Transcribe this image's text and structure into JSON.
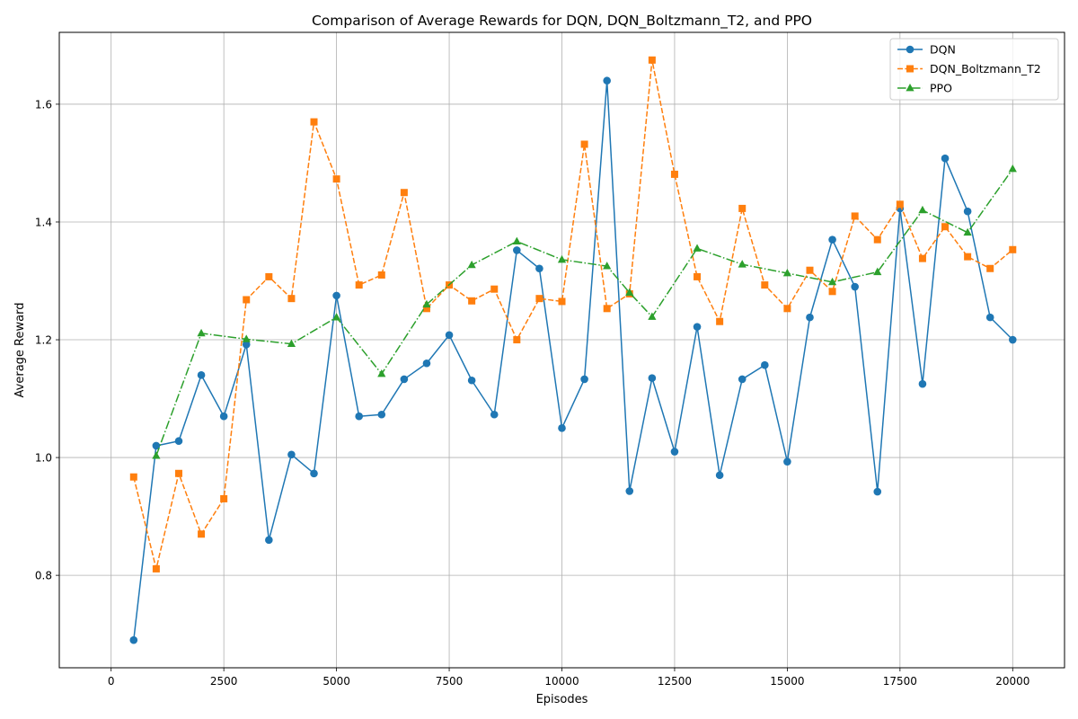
{
  "chart_data": {
    "type": "line",
    "title": "Comparison of Average Rewards for DQN, DQN_Boltzmann_T2, and PPO",
    "xlabel": "Episodes",
    "ylabel": "Average Reward",
    "xlim": [
      -1150,
      21150
    ],
    "ylim": [
      0.643,
      1.722
    ],
    "xticks": [
      0,
      2500,
      5000,
      7500,
      10000,
      12500,
      15000,
      17500,
      20000
    ],
    "yticks": [
      0.8,
      1.0,
      1.2,
      1.4,
      1.6
    ],
    "xtick_labels": [
      "0",
      "2500",
      "5000",
      "7500",
      "10000",
      "12500",
      "15000",
      "17500",
      "20000"
    ],
    "ytick_labels": [
      "0.8",
      "1.0",
      "1.2",
      "1.4",
      "1.6"
    ],
    "grid": true,
    "legend_position": "top-right",
    "series": [
      {
        "name": "DQN",
        "color": "#1f77b4",
        "marker": "circle",
        "line_style": "solid",
        "x": [
          500,
          1000,
          1500,
          2000,
          2500,
          3000,
          3500,
          4000,
          4500,
          5000,
          5500,
          6000,
          6500,
          7000,
          7500,
          8000,
          8500,
          9000,
          9500,
          10000,
          10500,
          11000,
          11500,
          12000,
          12500,
          13000,
          13500,
          14000,
          14500,
          15000,
          15500,
          16000,
          16500,
          17000,
          17500,
          18000,
          18500,
          19000,
          19500,
          20000
        ],
        "values": [
          0.69,
          1.02,
          1.028,
          1.14,
          1.07,
          1.192,
          0.86,
          1.005,
          0.973,
          1.275,
          1.07,
          1.073,
          1.133,
          1.16,
          1.208,
          1.131,
          1.073,
          1.352,
          1.321,
          1.05,
          1.133,
          1.64,
          0.943,
          1.135,
          1.01,
          1.222,
          0.97,
          1.133,
          1.157,
          0.993,
          1.238,
          1.37,
          1.29,
          0.942,
          1.423,
          1.125,
          1.508,
          1.418,
          1.238,
          1.2
        ]
      },
      {
        "name": "DQN_Boltzmann_T2",
        "color": "#ff7f0e",
        "marker": "square",
        "line_style": "dashed",
        "x": [
          500,
          1000,
          1500,
          2000,
          2500,
          3000,
          3500,
          4000,
          4500,
          5000,
          5500,
          6000,
          6500,
          7000,
          7500,
          8000,
          8500,
          9000,
          9500,
          10000,
          10500,
          11000,
          11500,
          12000,
          12500,
          13000,
          13500,
          14000,
          14500,
          15000,
          15500,
          16000,
          16500,
          17000,
          17500,
          18000,
          18500,
          19000,
          19500,
          20000
        ],
        "values": [
          0.967,
          0.811,
          0.973,
          0.87,
          0.93,
          1.268,
          1.307,
          1.27,
          1.57,
          1.473,
          1.293,
          1.31,
          1.45,
          1.253,
          1.293,
          1.266,
          1.286,
          1.2,
          1.27,
          1.265,
          1.532,
          1.253,
          1.278,
          1.675,
          1.481,
          1.307,
          1.231,
          1.423,
          1.293,
          1.253,
          1.318,
          1.282,
          1.41,
          1.37,
          1.43,
          1.338,
          1.392,
          1.341,
          1.321,
          1.353
        ]
      },
      {
        "name": "PPO",
        "color": "#2ca02c",
        "marker": "triangle",
        "line_style": "dashdot",
        "x": [
          1000,
          2000,
          3000,
          4000,
          5000,
          6000,
          7000,
          8000,
          9000,
          10000,
          11000,
          11500,
          12000,
          13000,
          14000,
          15000,
          16000,
          17000,
          18000,
          19000,
          20000
        ],
        "values": [
          1.003,
          1.211,
          1.201,
          1.193,
          1.238,
          1.142,
          1.26,
          1.327,
          1.367,
          1.336,
          1.325,
          1.28,
          1.239,
          1.355,
          1.328,
          1.313,
          1.298,
          1.315,
          1.42,
          1.382,
          1.49
        ]
      }
    ]
  }
}
